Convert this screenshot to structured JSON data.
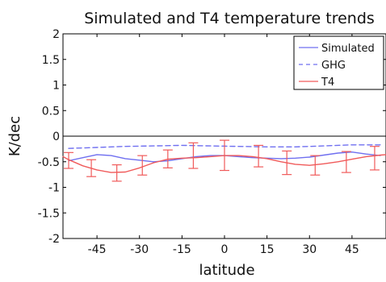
{
  "chart_data": {
    "type": "line",
    "title": "Simulated and T4 temperature trends",
    "xlabel": "latitude",
    "ylabel": "K/dec",
    "xlim": [
      -57,
      57
    ],
    "ylim": [
      -2,
      2
    ],
    "x_ticks": [
      -45,
      -30,
      -15,
      0,
      15,
      30,
      45
    ],
    "x_tick_labels": [
      "-45",
      "-30",
      "-15",
      "0",
      "15",
      "30",
      "45"
    ],
    "y_ticks": [
      2,
      1.5,
      1,
      0.5,
      0,
      -0.5,
      -1,
      -1.5,
      -2
    ],
    "y_tick_labels": [
      "2",
      "1.5",
      "1",
      "0.5",
      "0",
      "-0.5",
      "-1",
      "-1.5",
      "-2"
    ],
    "zero_line": true,
    "grid": false,
    "legend_position": "top-right",
    "series": [
      {
        "name": "Simulated",
        "style": "solid",
        "color": "#6f6ff0",
        "x": [
          -55,
          -50,
          -45,
          -40,
          -35,
          -30,
          -25,
          -20,
          -15,
          -10,
          -5,
          0,
          5,
          10,
          15,
          20,
          25,
          30,
          35,
          40,
          45,
          50,
          55
        ],
        "y": [
          -0.48,
          -0.42,
          -0.36,
          -0.38,
          -0.44,
          -0.47,
          -0.5,
          -0.48,
          -0.44,
          -0.4,
          -0.38,
          -0.38,
          -0.4,
          -0.42,
          -0.43,
          -0.44,
          -0.43,
          -0.41,
          -0.37,
          -0.33,
          -0.31,
          -0.35,
          -0.38
        ]
      },
      {
        "name": "GHG",
        "style": "dashed",
        "color": "#6f6ff0",
        "x": [
          -55,
          -45,
          -35,
          -25,
          -15,
          -5,
          5,
          15,
          25,
          35,
          45,
          55
        ],
        "y": [
          -0.24,
          -0.22,
          -0.2,
          -0.19,
          -0.18,
          -0.19,
          -0.2,
          -0.21,
          -0.21,
          -0.19,
          -0.17,
          -0.17
        ]
      },
      {
        "name": "T4",
        "style": "solid",
        "color": "#f05a5a",
        "x": [
          -57,
          -55,
          -50,
          -45,
          -40,
          -35,
          -30,
          -25,
          -20,
          -15,
          -10,
          -5,
          0,
          5,
          10,
          15,
          20,
          25,
          30,
          35,
          40,
          45,
          50,
          55,
          57
        ],
        "y": [
          -0.4,
          -0.46,
          -0.58,
          -0.66,
          -0.71,
          -0.7,
          -0.62,
          -0.52,
          -0.45,
          -0.43,
          -0.42,
          -0.4,
          -0.38,
          -0.38,
          -0.4,
          -0.44,
          -0.5,
          -0.55,
          -0.57,
          -0.54,
          -0.5,
          -0.45,
          -0.4,
          -0.37,
          -0.36
        ]
      }
    ],
    "error_bars": {
      "series": "T4",
      "color": "#f05a5a",
      "points": [
        {
          "x": -55,
          "y": -0.47,
          "low": -0.63,
          "high": -0.32
        },
        {
          "x": -47,
          "y": -0.63,
          "low": -0.79,
          "high": -0.46
        },
        {
          "x": -38,
          "y": -0.72,
          "low": -0.88,
          "high": -0.56
        },
        {
          "x": -29,
          "y": -0.58,
          "low": -0.76,
          "high": -0.38
        },
        {
          "x": -20,
          "y": -0.46,
          "low": -0.62,
          "high": -0.27
        },
        {
          "x": -11,
          "y": -0.44,
          "low": -0.63,
          "high": -0.13
        },
        {
          "x": 0,
          "y": -0.39,
          "low": -0.67,
          "high": -0.08
        },
        {
          "x": 12,
          "y": -0.4,
          "low": -0.6,
          "high": -0.18
        },
        {
          "x": 22,
          "y": -0.51,
          "low": -0.75,
          "high": -0.29
        },
        {
          "x": 32,
          "y": -0.57,
          "low": -0.76,
          "high": -0.38
        },
        {
          "x": 43,
          "y": -0.5,
          "low": -0.71,
          "high": -0.3
        },
        {
          "x": 53,
          "y": -0.41,
          "low": -0.66,
          "high": -0.2
        }
      ]
    }
  }
}
